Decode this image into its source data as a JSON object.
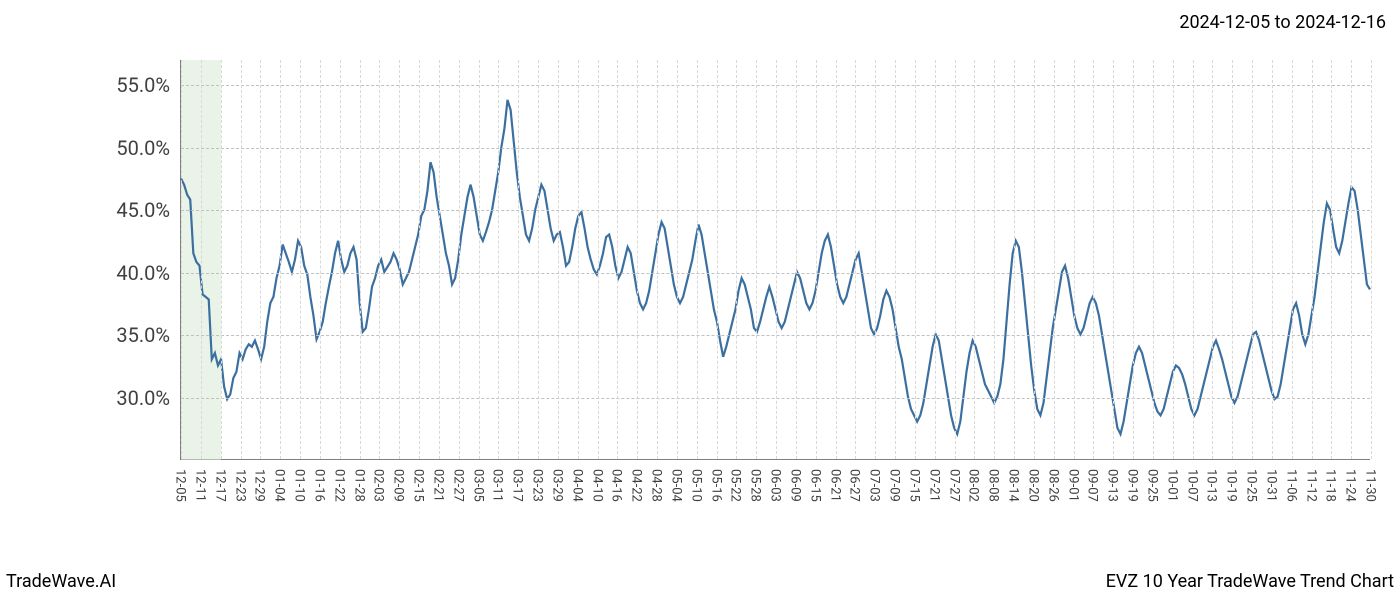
{
  "date_range_label": "2024-12-05 to 2024-12-16",
  "footer_left": "TradeWave.AI",
  "footer_right": "EVZ 10 Year TradeWave Trend Chart",
  "chart": {
    "type": "line",
    "background_color": "#ffffff",
    "line_color": "#3b6fa0",
    "line_width": 2.2,
    "grid_color": "#c0c0c0",
    "vgrid_color": "#d8d8d8",
    "axis_color": "#808080",
    "highlight_band_color": "#d9ead3",
    "highlight_band_opacity": 0.55,
    "y_axis": {
      "min": 25.0,
      "max": 57.0,
      "ticks": [
        30.0,
        35.0,
        40.0,
        45.0,
        50.0,
        55.0
      ],
      "tick_labels": [
        "30.0%",
        "35.0%",
        "40.0%",
        "45.0%",
        "50.0%",
        "55.0%"
      ],
      "label_fontsize": 20,
      "label_color": "#404040"
    },
    "x_axis": {
      "tick_labels": [
        "12-05",
        "12-11",
        "12-17",
        "12-23",
        "12-29",
        "01-04",
        "01-10",
        "01-16",
        "01-22",
        "01-28",
        "02-03",
        "02-09",
        "02-15",
        "02-21",
        "02-27",
        "03-05",
        "03-11",
        "03-17",
        "03-23",
        "03-29",
        "04-04",
        "04-10",
        "04-16",
        "04-22",
        "04-28",
        "05-04",
        "05-10",
        "05-16",
        "05-22",
        "05-28",
        "06-03",
        "06-09",
        "06-15",
        "06-21",
        "06-27",
        "07-03",
        "07-09",
        "07-15",
        "07-21",
        "07-27",
        "08-02",
        "08-08",
        "08-14",
        "08-20",
        "08-26",
        "09-01",
        "09-07",
        "09-13",
        "09-19",
        "09-25",
        "10-01",
        "10-07",
        "10-13",
        "10-19",
        "10-25",
        "10-31",
        "11-06",
        "11-12",
        "11-18",
        "11-24",
        "11-30"
      ],
      "label_fontsize": 13,
      "label_color": "#404040",
      "rotation": 90
    },
    "highlight_range": {
      "start_index": 0,
      "end_index": 2
    },
    "series": {
      "values": [
        47.5,
        47.0,
        46.2,
        45.8,
        41.5,
        40.8,
        40.5,
        38.2,
        38.0,
        37.8,
        33.0,
        33.5,
        32.5,
        33.0,
        30.8,
        29.8,
        30.2,
        31.5,
        32.0,
        33.5,
        33.0,
        33.8,
        34.2,
        34.0,
        34.5,
        33.8,
        33.0,
        34.0,
        36.0,
        37.5,
        38.0,
        39.5,
        40.5,
        42.2,
        41.5,
        40.8,
        40.0,
        41.0,
        42.5,
        42.0,
        40.5,
        39.8,
        38.0,
        36.5,
        34.6,
        35.2,
        36.0,
        37.5,
        38.8,
        40.0,
        41.5,
        42.5,
        41.0,
        40.0,
        40.5,
        41.5,
        42.0,
        41.0,
        37.5,
        35.2,
        35.5,
        37.0,
        38.8,
        39.5,
        40.5,
        41.0,
        40.0,
        40.4,
        40.8,
        41.5,
        41.0,
        40.2,
        39.0,
        39.5,
        40.0,
        41.0,
        42.0,
        43.0,
        44.5,
        45.0,
        46.5,
        48.8,
        48.0,
        46.0,
        44.5,
        43.0,
        41.5,
        40.5,
        39.0,
        39.5,
        41.0,
        43.0,
        44.5,
        46.0,
        47.0,
        46.0,
        44.5,
        43.0,
        42.5,
        43.2,
        44.0,
        45.0,
        46.5,
        48.0,
        50.0,
        51.5,
        53.8,
        53.0,
        50.5,
        48.0,
        46.0,
        44.5,
        43.0,
        42.5,
        43.5,
        45.0,
        46.0,
        47.0,
        46.5,
        45.0,
        43.5,
        42.5,
        43.0,
        43.2,
        42.0,
        40.5,
        40.8,
        42.0,
        43.5,
        44.5,
        44.8,
        43.5,
        42.0,
        41.0,
        40.2,
        39.8,
        40.5,
        41.5,
        42.8,
        43.0,
        42.0,
        40.5,
        39.5,
        40.0,
        41.0,
        42.0,
        41.5,
        40.0,
        38.5,
        37.5,
        37.0,
        37.5,
        38.5,
        40.0,
        41.5,
        43.0,
        44.0,
        43.5,
        42.0,
        40.5,
        39.0,
        38.0,
        37.5,
        38.0,
        39.0,
        40.0,
        41.0,
        42.5,
        43.8,
        43.0,
        41.5,
        40.0,
        38.5,
        37.0,
        36.0,
        34.5,
        33.2,
        34.0,
        35.0,
        36.0,
        37.0,
        38.5,
        39.5,
        39.0,
        38.0,
        37.0,
        35.5,
        35.2,
        36.0,
        37.0,
        38.0,
        38.8,
        38.0,
        37.0,
        36.0,
        35.5,
        36.0,
        37.0,
        38.0,
        39.0,
        40.0,
        39.5,
        38.5,
        37.5,
        37.0,
        37.5,
        38.5,
        40.0,
        41.5,
        42.5,
        43.0,
        42.0,
        40.5,
        39.0,
        38.0,
        37.5,
        38.0,
        39.0,
        40.0,
        41.0,
        41.5,
        40.0,
        38.5,
        37.0,
        35.5,
        35.0,
        35.5,
        36.5,
        37.8,
        38.5,
        38.0,
        37.0,
        35.5,
        34.0,
        33.0,
        31.5,
        30.0,
        29.0,
        28.5,
        28.0,
        28.5,
        29.5,
        31.0,
        32.5,
        34.0,
        35.0,
        34.5,
        33.0,
        31.5,
        30.0,
        28.5,
        27.5,
        27.0,
        28.0,
        30.0,
        32.0,
        33.5,
        34.5,
        34.0,
        33.0,
        32.0,
        31.0,
        30.5,
        30.0,
        29.5,
        30.0,
        31.0,
        33.0,
        36.0,
        39.0,
        41.5,
        42.5,
        42.0,
        40.0,
        37.5,
        35.0,
        32.5,
        30.5,
        29.0,
        28.5,
        29.5,
        31.5,
        33.5,
        35.5,
        37.0,
        38.5,
        40.0,
        40.5,
        39.5,
        38.0,
        36.5,
        35.5,
        35.0,
        35.5,
        36.5,
        37.5,
        38.0,
        37.5,
        36.5,
        35.0,
        33.5,
        32.0,
        30.5,
        29.0,
        27.5,
        27.0,
        28.0,
        29.5,
        31.0,
        32.5,
        33.5,
        34.0,
        33.5,
        32.5,
        31.5,
        30.5,
        29.5,
        28.8,
        28.5,
        29.0,
        30.0,
        31.0,
        32.0,
        32.5,
        32.3,
        31.8,
        31.0,
        30.0,
        29.0,
        28.5,
        29.0,
        30.0,
        31.0,
        32.0,
        33.0,
        34.0,
        34.5,
        33.8,
        33.0,
        32.0,
        31.0,
        30.0,
        29.5,
        30.0,
        31.0,
        32.0,
        33.0,
        34.0,
        35.0,
        35.2,
        34.5,
        33.5,
        32.5,
        31.5,
        30.5,
        29.8,
        30.0,
        31.0,
        32.5,
        34.0,
        35.5,
        37.0,
        37.5,
        36.5,
        35.0,
        34.2,
        35.0,
        36.5,
        38.0,
        40.0,
        42.0,
        44.0,
        45.5,
        45.0,
        43.5,
        42.0,
        41.5,
        42.5,
        44.0,
        45.5,
        46.8,
        46.5,
        45.0,
        43.0,
        41.0,
        39.0,
        38.6
      ]
    }
  }
}
